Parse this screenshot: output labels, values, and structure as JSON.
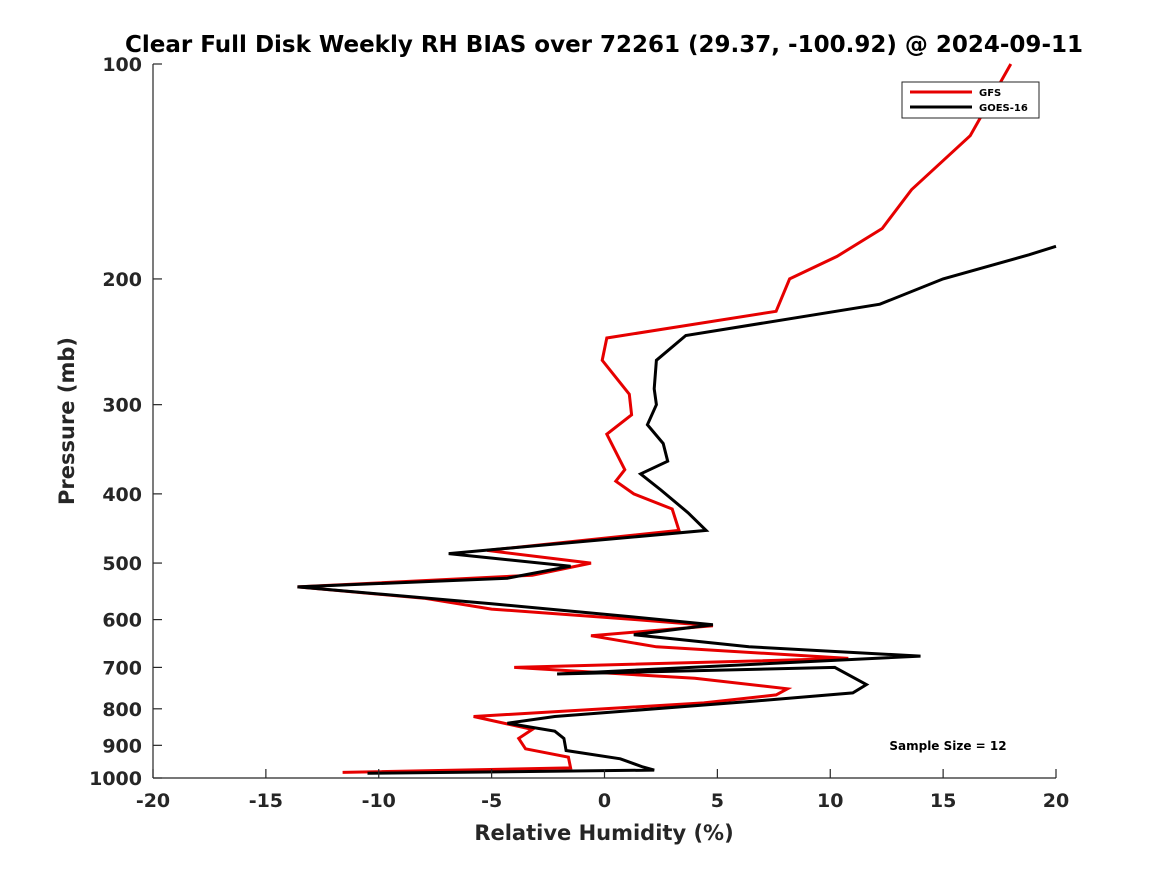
{
  "chart_data": {
    "type": "line",
    "title": "Clear Full Disk Weekly RH BIAS over 72261 (29.37, -100.92) @ 2024-09-11",
    "xlabel": "Relative Humidity (%)",
    "ylabel": "Pressure (mb)",
    "xlim": [
      -20,
      20
    ],
    "ylim": [
      100,
      1000
    ],
    "yscale": "log",
    "yreversed": true,
    "x_ticks": [
      -20,
      -15,
      -10,
      -5,
      0,
      5,
      10,
      15,
      20
    ],
    "x_tick_labels": [
      "-20",
      "-15",
      "-10",
      "-5",
      "0",
      "5",
      "10",
      "15",
      "20"
    ],
    "y_ticks": [
      100,
      200,
      300,
      400,
      500,
      600,
      700,
      800,
      900,
      1000
    ],
    "y_tick_labels": [
      "100",
      "200",
      "300",
      "400",
      "500",
      "600",
      "700",
      "800",
      "900",
      "1000"
    ],
    "grid": false,
    "legend_position": "top-right",
    "annotation": "Sample Size = 12",
    "series": [
      {
        "name": "GFS",
        "color": "#e60000",
        "points": [
          [
            18.0,
            100
          ],
          [
            16.2,
            126
          ],
          [
            13.6,
            150
          ],
          [
            12.3,
            170
          ],
          [
            10.3,
            186
          ],
          [
            8.2,
            200
          ],
          [
            7.6,
            222
          ],
          [
            0.1,
            242
          ],
          [
            -0.1,
            260
          ],
          [
            1.1,
            290
          ],
          [
            1.2,
            310
          ],
          [
            0.1,
            330
          ],
          [
            0.9,
            370
          ],
          [
            0.5,
            384
          ],
          [
            1.3,
            400
          ],
          [
            3.0,
            420
          ],
          [
            3.3,
            450
          ],
          [
            -5.2,
            480
          ],
          [
            -0.6,
            500
          ],
          [
            -3.2,
            520
          ],
          [
            -13.6,
            540
          ],
          [
            -8.0,
            560
          ],
          [
            -5.0,
            580
          ],
          [
            1.4,
            600
          ],
          [
            4.8,
            612
          ],
          [
            -0.6,
            632
          ],
          [
            2.3,
            655
          ],
          [
            10.8,
            680
          ],
          [
            -4.0,
            700
          ],
          [
            4.0,
            725
          ],
          [
            8.1,
            750
          ],
          [
            7.6,
            765
          ],
          [
            4.4,
            785
          ],
          [
            -5.8,
            820
          ],
          [
            -3.2,
            855
          ],
          [
            -3.8,
            880
          ],
          [
            -3.5,
            910
          ],
          [
            -1.6,
            935
          ],
          [
            -1.5,
            968
          ],
          [
            -11.6,
            982
          ]
        ]
      },
      {
        "name": "GOES-16",
        "color": "#000000",
        "points": [
          [
            20.0,
            180
          ],
          [
            18.8,
            185
          ],
          [
            15.0,
            200
          ],
          [
            12.2,
            217
          ],
          [
            3.6,
            240
          ],
          [
            2.3,
            260
          ],
          [
            2.2,
            285
          ],
          [
            2.3,
            300
          ],
          [
            1.9,
            320
          ],
          [
            2.6,
            340
          ],
          [
            2.8,
            360
          ],
          [
            1.6,
            375
          ],
          [
            2.5,
            395
          ],
          [
            3.7,
            425
          ],
          [
            4.5,
            450
          ],
          [
            -6.9,
            485
          ],
          [
            -1.5,
            505
          ],
          [
            -4.3,
            525
          ],
          [
            -13.6,
            540
          ],
          [
            -5.0,
            570
          ],
          [
            1.3,
            595
          ],
          [
            4.8,
            610
          ],
          [
            1.3,
            630
          ],
          [
            6.4,
            655
          ],
          [
            14.0,
            675
          ],
          [
            -2.1,
            715
          ],
          [
            10.2,
            700
          ],
          [
            11.6,
            740
          ],
          [
            11.0,
            760
          ],
          [
            6.7,
            780
          ],
          [
            -2.2,
            820
          ],
          [
            -4.3,
            838
          ],
          [
            -2.2,
            860
          ],
          [
            -1.8,
            880
          ],
          [
            -1.7,
            915
          ],
          [
            0.7,
            940
          ],
          [
            1.7,
            965
          ],
          [
            2.2,
            975
          ],
          [
            -10.5,
            985
          ]
        ]
      }
    ]
  }
}
